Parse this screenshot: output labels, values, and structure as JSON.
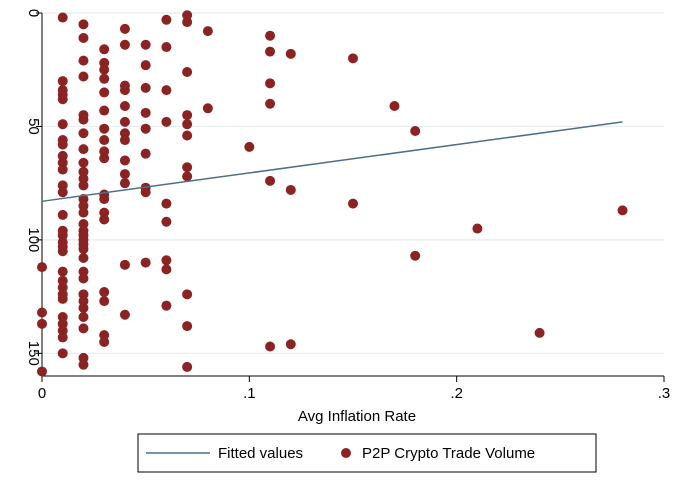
{
  "chart_data": {
    "type": "scatter",
    "title": "",
    "xlabel": "Avg Inflation Rate",
    "ylabel": "",
    "xlim": [
      0,
      0.3
    ],
    "ylim": [
      160,
      0
    ],
    "y_reversed": true,
    "grid": true,
    "legend_position": "bottom",
    "x_ticks": [
      {
        "value": 0,
        "label": "0"
      },
      {
        "value": 0.1,
        "label": ".1"
      },
      {
        "value": 0.2,
        "label": ".2"
      },
      {
        "value": 0.3,
        "label": ".3"
      }
    ],
    "y_ticks": [
      {
        "value": 0,
        "label": "0"
      },
      {
        "value": 50,
        "label": "50"
      },
      {
        "value": 100,
        "label": "100"
      },
      {
        "value": 150,
        "label": "150"
      }
    ],
    "colors": {
      "scatter": "#8b2323",
      "line": "#4f6f88",
      "grid": "#e6ecef",
      "plot_bg": "#ffffff"
    },
    "series": [
      {
        "name": "Fitted values",
        "kind": "line",
        "points": [
          [
            0,
            83
          ],
          [
            0.28,
            48
          ]
        ]
      },
      {
        "name": "P2P Crypto Trade Volume",
        "kind": "scatter",
        "points": [
          [
            0,
            112
          ],
          [
            0,
            132
          ],
          [
            0,
            137
          ],
          [
            0,
            158
          ],
          [
            0.01,
            2
          ],
          [
            0.01,
            30
          ],
          [
            0.01,
            34
          ],
          [
            0.01,
            36
          ],
          [
            0.01,
            38
          ],
          [
            0.01,
            49
          ],
          [
            0.01,
            56
          ],
          [
            0.01,
            58
          ],
          [
            0.01,
            63
          ],
          [
            0.01,
            66
          ],
          [
            0.01,
            69
          ],
          [
            0.01,
            76
          ],
          [
            0.01,
            79
          ],
          [
            0.01,
            89
          ],
          [
            0.01,
            96
          ],
          [
            0.01,
            98
          ],
          [
            0.01,
            101
          ],
          [
            0.01,
            103
          ],
          [
            0.01,
            105
          ],
          [
            0.01,
            114
          ],
          [
            0.01,
            118
          ],
          [
            0.01,
            121
          ],
          [
            0.01,
            124
          ],
          [
            0.01,
            126
          ],
          [
            0.01,
            134
          ],
          [
            0.01,
            137
          ],
          [
            0.01,
            140
          ],
          [
            0.01,
            143
          ],
          [
            0.01,
            150
          ],
          [
            0.02,
            5
          ],
          [
            0.02,
            11
          ],
          [
            0.02,
            21
          ],
          [
            0.02,
            28
          ],
          [
            0.02,
            45
          ],
          [
            0.02,
            47
          ],
          [
            0.02,
            53
          ],
          [
            0.02,
            60
          ],
          [
            0.02,
            66
          ],
          [
            0.02,
            70
          ],
          [
            0.02,
            73
          ],
          [
            0.02,
            76
          ],
          [
            0.02,
            82
          ],
          [
            0.02,
            85
          ],
          [
            0.02,
            88
          ],
          [
            0.02,
            93
          ],
          [
            0.02,
            96
          ],
          [
            0.02,
            98
          ],
          [
            0.02,
            100
          ],
          [
            0.02,
            102
          ],
          [
            0.02,
            104
          ],
          [
            0.02,
            108
          ],
          [
            0.02,
            114
          ],
          [
            0.02,
            117
          ],
          [
            0.02,
            124
          ],
          [
            0.02,
            127
          ],
          [
            0.02,
            130
          ],
          [
            0.02,
            134
          ],
          [
            0.02,
            139
          ],
          [
            0.02,
            152
          ],
          [
            0.02,
            155
          ],
          [
            0.03,
            16
          ],
          [
            0.03,
            22
          ],
          [
            0.03,
            25
          ],
          [
            0.03,
            29
          ],
          [
            0.03,
            35
          ],
          [
            0.03,
            43
          ],
          [
            0.03,
            51
          ],
          [
            0.03,
            56
          ],
          [
            0.03,
            61
          ],
          [
            0.03,
            64
          ],
          [
            0.03,
            80
          ],
          [
            0.03,
            82
          ],
          [
            0.03,
            88
          ],
          [
            0.03,
            91
          ],
          [
            0.03,
            123
          ],
          [
            0.03,
            127
          ],
          [
            0.03,
            142
          ],
          [
            0.03,
            145
          ],
          [
            0.04,
            7
          ],
          [
            0.04,
            14
          ],
          [
            0.04,
            32
          ],
          [
            0.04,
            34
          ],
          [
            0.04,
            41
          ],
          [
            0.04,
            48
          ],
          [
            0.04,
            53
          ],
          [
            0.04,
            56
          ],
          [
            0.04,
            65
          ],
          [
            0.04,
            71
          ],
          [
            0.04,
            75
          ],
          [
            0.04,
            111
          ],
          [
            0.04,
            133
          ],
          [
            0.05,
            14
          ],
          [
            0.05,
            23
          ],
          [
            0.05,
            33
          ],
          [
            0.05,
            44
          ],
          [
            0.05,
            51
          ],
          [
            0.05,
            62
          ],
          [
            0.05,
            77
          ],
          [
            0.05,
            79
          ],
          [
            0.05,
            110
          ],
          [
            0.06,
            3
          ],
          [
            0.06,
            15
          ],
          [
            0.06,
            34
          ],
          [
            0.06,
            48
          ],
          [
            0.06,
            84
          ],
          [
            0.06,
            92
          ],
          [
            0.06,
            109
          ],
          [
            0.06,
            113
          ],
          [
            0.06,
            129
          ],
          [
            0.07,
            1
          ],
          [
            0.07,
            4
          ],
          [
            0.07,
            26
          ],
          [
            0.07,
            45
          ],
          [
            0.07,
            49
          ],
          [
            0.07,
            54
          ],
          [
            0.07,
            68
          ],
          [
            0.07,
            72
          ],
          [
            0.07,
            124
          ],
          [
            0.07,
            138
          ],
          [
            0.07,
            156
          ],
          [
            0.08,
            8
          ],
          [
            0.08,
            42
          ],
          [
            0.1,
            59
          ],
          [
            0.11,
            10
          ],
          [
            0.11,
            17
          ],
          [
            0.11,
            31
          ],
          [
            0.11,
            40
          ],
          [
            0.11,
            74
          ],
          [
            0.11,
            147
          ],
          [
            0.12,
            18
          ],
          [
            0.12,
            78
          ],
          [
            0.12,
            146
          ],
          [
            0.15,
            20
          ],
          [
            0.15,
            84
          ],
          [
            0.17,
            41
          ],
          [
            0.18,
            52
          ],
          [
            0.18,
            107
          ],
          [
            0.21,
            95
          ],
          [
            0.24,
            141
          ],
          [
            0.28,
            87
          ]
        ]
      }
    ]
  }
}
